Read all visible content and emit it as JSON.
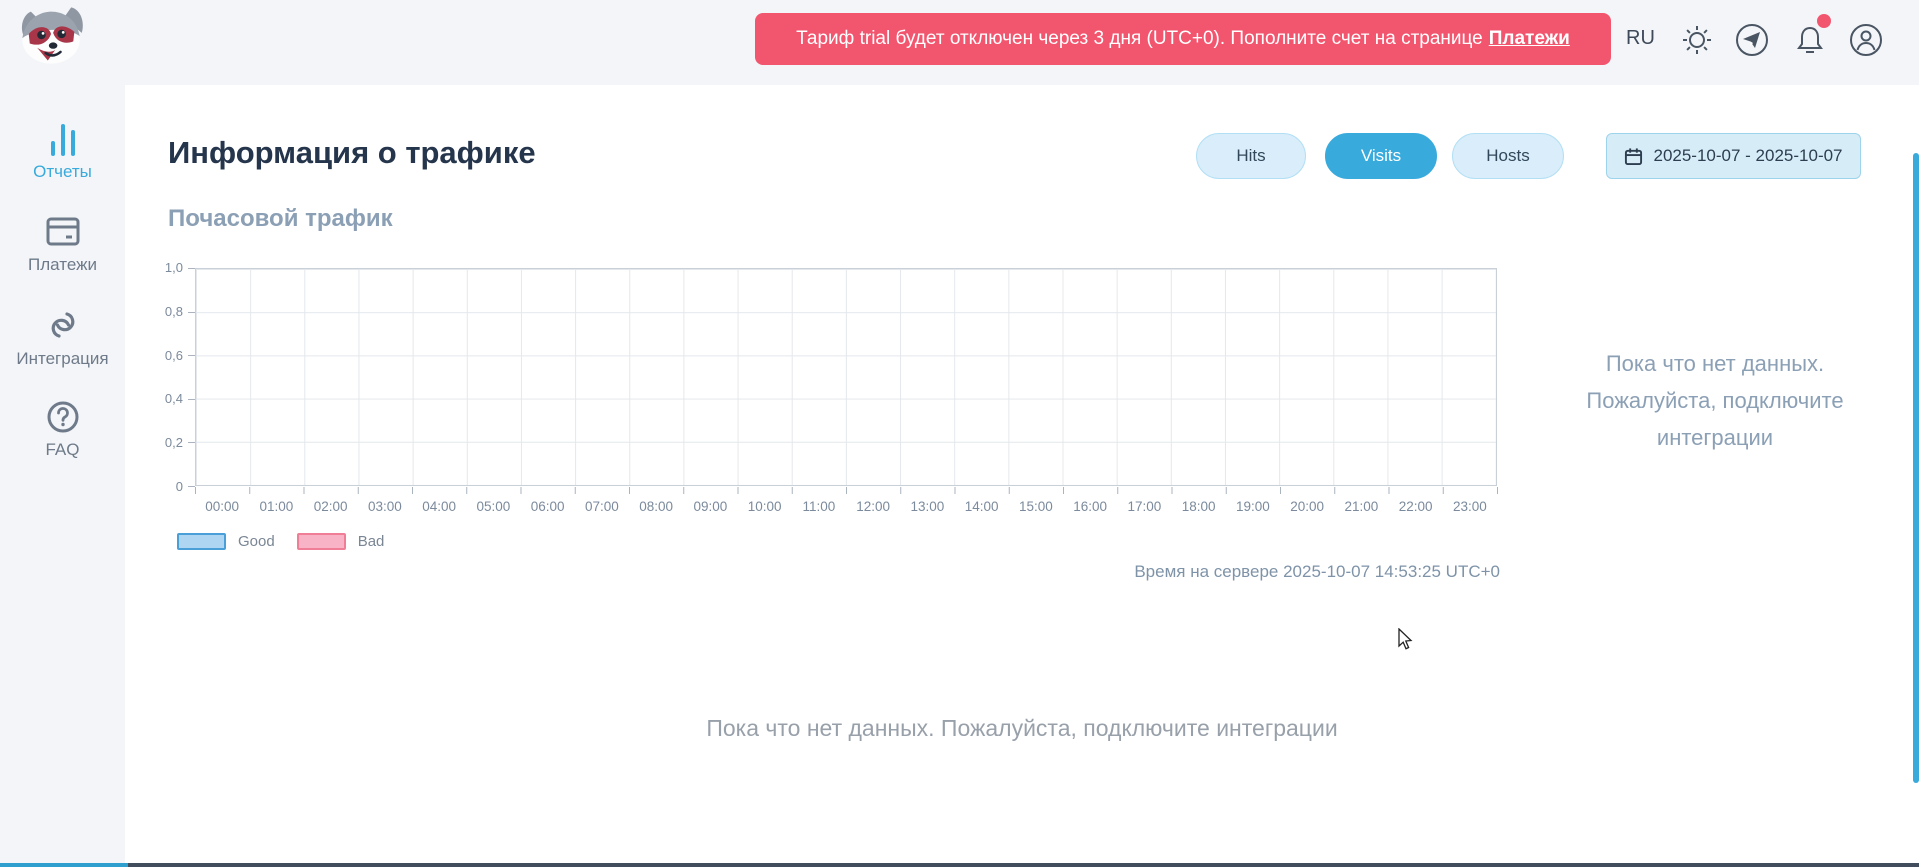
{
  "header": {
    "language": "RU",
    "banner": {
      "text": "Тариф trial будет отключен через 3 дня (UTC+0). Пополните счет на странице",
      "link_label": "Платежи"
    },
    "icon_names": [
      "theme-sun-icon",
      "telegram-icon",
      "bell-icon",
      "account-icon"
    ],
    "banner_color": "#f2566f",
    "has_notification": true
  },
  "sidebar": {
    "items": [
      {
        "label": "Отчеты",
        "icon": "bar-chart-icon",
        "active": true
      },
      {
        "label": "Платежи",
        "icon": "credit-card-icon",
        "active": false
      },
      {
        "label": "Интеграция",
        "icon": "link-icon",
        "active": false
      },
      {
        "label": "FAQ",
        "icon": "question-icon",
        "active": false
      }
    ]
  },
  "main": {
    "title": "Информация о трафике",
    "tabs": [
      {
        "label": "Hits",
        "active": false
      },
      {
        "label": "Visits",
        "active": true
      },
      {
        "label": "Hosts",
        "active": false
      }
    ],
    "date_range": "2025-10-07 - 2025-10-07",
    "section_title": "Почасовой трафик",
    "no_data_side": "Пока что нет данных. Пожалуйста, подключите интеграции",
    "server_time": "Время на сервере 2025-10-07 14:53:25 UTC+0",
    "no_data_bottom": "Пока что нет данных. Пожалуйста, подключите интеграции",
    "accent_color": "#38aadc"
  },
  "chart_data": {
    "type": "bar",
    "title": "Почасовой трафик",
    "x_ticks": [
      "00:00",
      "01:00",
      "02:00",
      "03:00",
      "04:00",
      "05:00",
      "06:00",
      "07:00",
      "08:00",
      "09:00",
      "10:00",
      "11:00",
      "12:00",
      "13:00",
      "14:00",
      "15:00",
      "16:00",
      "17:00",
      "18:00",
      "19:00",
      "20:00",
      "21:00",
      "22:00",
      "23:00"
    ],
    "y_ticks": [
      "1,0",
      "0,8",
      "0,6",
      "0,4",
      "0,2",
      "0"
    ],
    "ylim": [
      0,
      1
    ],
    "grid": true,
    "legend_position": "bottom-left",
    "series": [
      {
        "name": "Good",
        "fill": "#aed6f2",
        "border": "#4a9fd8",
        "values": []
      },
      {
        "name": "Bad",
        "fill": "#f9b3c6",
        "border": "#f07e97",
        "values": []
      }
    ],
    "empty": true
  }
}
